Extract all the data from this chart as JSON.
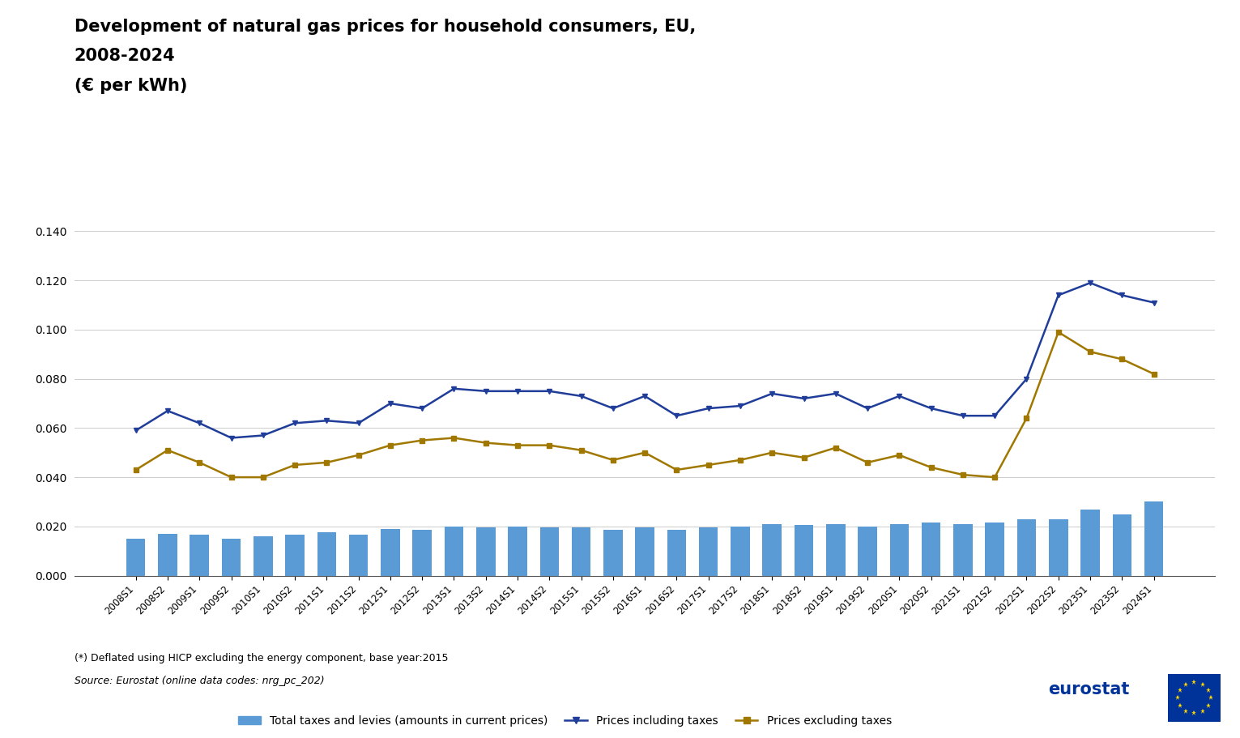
{
  "title_line1": "Development of natural gas prices for household consumers, EU,",
  "title_line2": "2008-2024",
  "title_line3": "(€ per kWh)",
  "title_fontsize": 15,
  "footnote1": "(*) Deflated using HICP excluding the energy component, base year:2015",
  "footnote2": "Source: Eurostat (online data codes: nrg_pc_202)",
  "categories": [
    "2008S1",
    "2008S2",
    "2009S1",
    "2009S2",
    "2010S1",
    "2010S2",
    "2011S1",
    "2011S2",
    "2012S1",
    "2012S2",
    "2013S1",
    "2013S2",
    "2014S1",
    "2014S2",
    "2015S1",
    "2015S2",
    "2016S1",
    "2016S2",
    "2017S1",
    "2017S2",
    "2018S1",
    "2018S2",
    "2019S1",
    "2019S2",
    "2020S1",
    "2020S2",
    "2021S1",
    "2021S2",
    "2022S1",
    "2022S2",
    "2023S1",
    "2023S2",
    "2024S1"
  ],
  "prices_including_taxes": [
    0.059,
    0.067,
    0.062,
    0.056,
    0.057,
    0.062,
    0.063,
    0.062,
    0.07,
    0.068,
    0.076,
    0.075,
    0.075,
    0.075,
    0.073,
    0.068,
    0.073,
    0.065,
    0.068,
    0.069,
    0.074,
    0.072,
    0.074,
    0.068,
    0.073,
    0.068,
    0.065,
    0.065,
    0.08,
    0.114,
    0.119,
    0.114,
    0.111
  ],
  "prices_excluding_taxes": [
    0.043,
    0.051,
    0.046,
    0.04,
    0.04,
    0.045,
    0.046,
    0.049,
    0.053,
    0.055,
    0.056,
    0.054,
    0.053,
    0.053,
    0.051,
    0.047,
    0.05,
    0.043,
    0.045,
    0.047,
    0.05,
    0.048,
    0.052,
    0.046,
    0.049,
    0.044,
    0.041,
    0.04,
    0.064,
    0.099,
    0.091,
    0.088,
    0.082
  ],
  "total_taxes": [
    0.015,
    0.017,
    0.0165,
    0.015,
    0.016,
    0.0165,
    0.0175,
    0.0165,
    0.019,
    0.0185,
    0.02,
    0.0195,
    0.02,
    0.0195,
    0.0195,
    0.0185,
    0.0195,
    0.0185,
    0.0195,
    0.02,
    0.021,
    0.0205,
    0.021,
    0.02,
    0.021,
    0.0215,
    0.021,
    0.0215,
    0.023,
    0.023,
    0.027,
    0.025,
    0.03
  ],
  "bar_color": "#5B9BD5",
  "line_color_incl": "#1F3D99",
  "line_color_excl": "#A07800",
  "ylim": [
    0.0,
    0.15
  ],
  "yticks": [
    0.0,
    0.02,
    0.04,
    0.06,
    0.08,
    0.1,
    0.12,
    0.14
  ],
  "background_color": "#FFFFFF",
  "grid_color": "#CCCCCC",
  "legend_labels": [
    "Total taxes and levies (amounts in current prices)",
    "Prices including taxes",
    "Prices excluding taxes"
  ]
}
